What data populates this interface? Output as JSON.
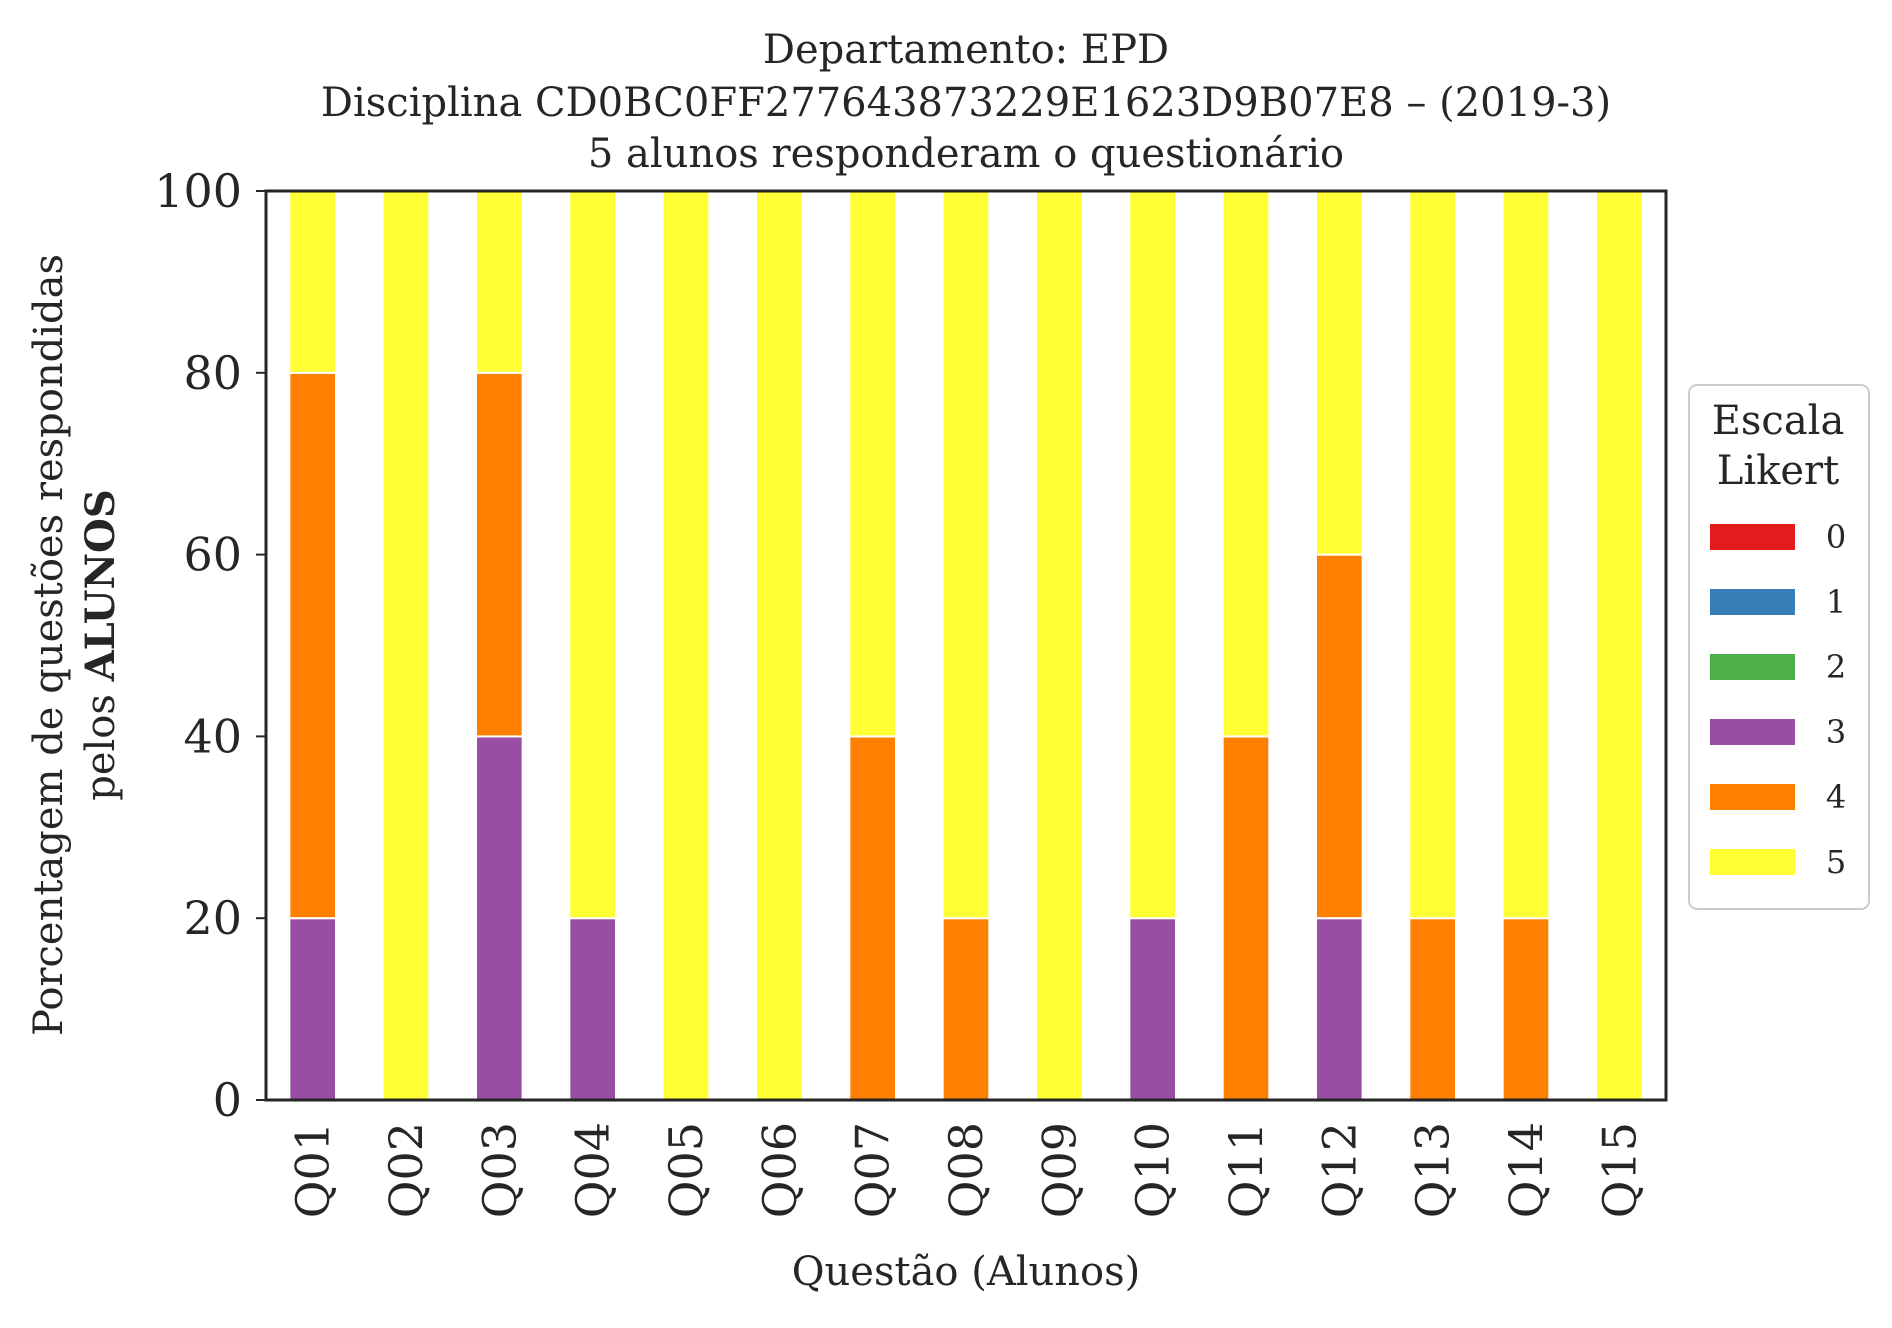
{
  "chart_data": {
    "type": "bar",
    "stacked": true,
    "title_lines": [
      "Departamento: EPD",
      "Disciplina CD0BC0FF277643873229E1623D9B07E8 – (2019-3)",
      "5 alunos responderam o questionário"
    ],
    "xlabel": "Questão (Alunos)",
    "ylabel_line1": "Porcentagem de questões respondidas",
    "ylabel_line2_prefix": "pelos ",
    "ylabel_line2_bold": "ALUNOS",
    "ylim": [
      0,
      100
    ],
    "yticks": [
      "0",
      "20",
      "40",
      "60",
      "80",
      "100"
    ],
    "categories": [
      "Q01",
      "Q02",
      "Q03",
      "Q04",
      "Q05",
      "Q06",
      "Q07",
      "Q08",
      "Q09",
      "Q10",
      "Q11",
      "Q12",
      "Q13",
      "Q14",
      "Q15"
    ],
    "legend": {
      "title_lines": [
        "Escala",
        "Likert"
      ],
      "placement": "right"
    },
    "series": [
      {
        "name": "0",
        "color": "#e41a1c",
        "values": [
          0,
          0,
          0,
          0,
          0,
          0,
          0,
          0,
          0,
          0,
          0,
          0,
          0,
          0,
          0
        ]
      },
      {
        "name": "1",
        "color": "#377eb8",
        "values": [
          0,
          0,
          0,
          0,
          0,
          0,
          0,
          0,
          0,
          0,
          0,
          0,
          0,
          0,
          0
        ]
      },
      {
        "name": "2",
        "color": "#4daf4a",
        "values": [
          0,
          0,
          0,
          0,
          0,
          0,
          0,
          0,
          0,
          0,
          0,
          0,
          0,
          0,
          0
        ]
      },
      {
        "name": "3",
        "color": "#984ea3",
        "values": [
          20,
          0,
          40,
          20,
          0,
          0,
          0,
          0,
          0,
          20,
          0,
          20,
          0,
          0,
          0
        ]
      },
      {
        "name": "4",
        "color": "#ff7f00",
        "values": [
          60,
          0,
          40,
          0,
          0,
          0,
          40,
          20,
          0,
          0,
          40,
          40,
          20,
          20,
          0
        ]
      },
      {
        "name": "5",
        "color": "#ffff33",
        "values": [
          20,
          100,
          20,
          80,
          100,
          100,
          60,
          80,
          100,
          80,
          60,
          40,
          80,
          80,
          100
        ]
      }
    ],
    "grid": false
  }
}
